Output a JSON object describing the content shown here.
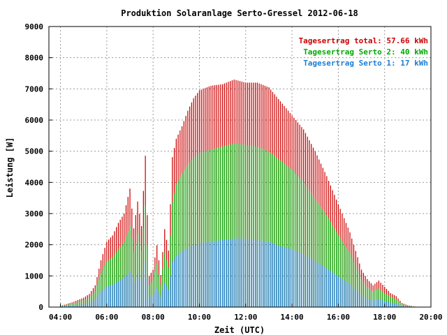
{
  "chart_data": {
    "type": "bar",
    "title": "Produktion Solaranlage Serto-Gressel 2012-06-18",
    "xlabel": "Zeit (UTC)",
    "ylabel": "Leistung [W]",
    "ylim": [
      0,
      9000
    ],
    "yticks": [
      "0",
      "1000",
      "2000",
      "3000",
      "4000",
      "5000",
      "6000",
      "7000",
      "8000",
      "9000"
    ],
    "xlim": [
      3.5,
      20.0
    ],
    "xtick_values": [
      4,
      6,
      8,
      10,
      12,
      14,
      16,
      18,
      20
    ],
    "xticks": [
      "04:00",
      "06:00",
      "08:00",
      "10:00",
      "12:00",
      "14:00",
      "16:00",
      "18:00",
      "20:00"
    ],
    "grid": true,
    "legend_position": "top-right",
    "legend": [
      {
        "label": "Tagesertrag total: 57.66 kWh",
        "color": "#cc0000"
      },
      {
        "label": "Tagesertrag Serto 2: 40 kWh",
        "color": "#00aa00"
      },
      {
        "label": "Tagesertrag Serto 1: 17 kWh",
        "color": "#1a7fd4"
      }
    ],
    "interval_minutes": 5,
    "series": [
      {
        "name": "Tagesertrag total",
        "color": "#cc0000",
        "times": [
          4.0,
          4.5,
          5.0,
          5.25,
          5.5,
          5.75,
          6.0,
          6.25,
          6.5,
          6.75,
          7.0,
          7.17,
          7.33,
          7.5,
          7.67,
          7.83,
          8.0,
          8.17,
          8.33,
          8.5,
          8.67,
          8.83,
          9.0,
          9.25,
          9.5,
          9.75,
          10.0,
          10.5,
          11.0,
          11.5,
          12.0,
          12.5,
          13.0,
          13.5,
          14.0,
          14.5,
          15.0,
          15.5,
          16.0,
          16.5,
          16.75,
          17.0,
          17.25,
          17.5,
          17.75,
          18.0,
          18.25,
          18.5,
          18.75,
          19.0,
          19.25,
          19.5
        ],
        "values": [
          40,
          150,
          300,
          420,
          700,
          1500,
          2100,
          2300,
          2700,
          3000,
          3800,
          2500,
          3400,
          2600,
          4900,
          1000,
          1200,
          2000,
          1000,
          2500,
          1800,
          4800,
          5400,
          5800,
          6300,
          6700,
          6950,
          7100,
          7150,
          7300,
          7200,
          7200,
          7050,
          6600,
          6150,
          5700,
          5000,
          4200,
          3300,
          2400,
          1800,
          1200,
          900,
          700,
          850,
          650,
          450,
          350,
          130,
          60,
          20,
          5
        ]
      },
      {
        "name": "Tagesertrag Serto 2",
        "color": "#00aa00",
        "times": [
          4.0,
          4.5,
          5.0,
          5.25,
          5.5,
          5.75,
          6.0,
          6.25,
          6.5,
          6.75,
          7.0,
          7.17,
          7.33,
          7.5,
          7.67,
          7.83,
          8.0,
          8.17,
          8.33,
          8.5,
          8.67,
          8.83,
          9.0,
          9.25,
          9.5,
          9.75,
          10.0,
          10.5,
          11.0,
          11.5,
          12.0,
          12.5,
          13.0,
          13.5,
          14.0,
          14.5,
          15.0,
          15.5,
          16.0,
          16.5,
          16.75,
          17.0,
          17.25,
          17.5,
          17.75,
          18.0,
          18.25,
          18.5,
          18.75,
          19.0,
          19.25,
          19.5
        ],
        "values": [
          30,
          110,
          220,
          300,
          500,
          1050,
          1450,
          1600,
          1850,
          2100,
          2600,
          1750,
          2350,
          1800,
          3300,
          700,
          850,
          1400,
          700,
          1750,
          1250,
          3350,
          3950,
          4300,
          4600,
          4800,
          4950,
          5050,
          5150,
          5250,
          5200,
          5150,
          5000,
          4700,
          4400,
          4000,
          3500,
          2950,
          2300,
          1700,
          1300,
          900,
          650,
          500,
          600,
          450,
          330,
          250,
          90,
          40,
          15,
          4
        ]
      },
      {
        "name": "Tagesertrag Serto 1",
        "color": "#1a7fd4",
        "times": [
          4.0,
          4.5,
          5.0,
          5.25,
          5.5,
          5.75,
          6.0,
          6.25,
          6.5,
          6.75,
          7.0,
          7.17,
          7.33,
          7.5,
          7.67,
          7.83,
          8.0,
          8.17,
          8.33,
          8.5,
          8.67,
          8.83,
          9.0,
          9.25,
          9.5,
          9.75,
          10.0,
          10.5,
          11.0,
          11.5,
          12.0,
          12.5,
          13.0,
          13.5,
          14.0,
          14.5,
          15.0,
          15.5,
          16.0,
          16.5,
          16.75,
          17.0,
          17.25,
          17.5,
          17.75,
          18.0,
          18.25,
          18.5,
          18.75,
          19.0,
          19.25,
          19.5
        ],
        "values": [
          15,
          50,
          100,
          140,
          230,
          480,
          650,
          720,
          830,
          950,
          1150,
          800,
          1050,
          800,
          1500,
          320,
          380,
          620,
          320,
          780,
          560,
          1450,
          1650,
          1800,
          1900,
          2000,
          2050,
          2100,
          2150,
          2200,
          2200,
          2150,
          2100,
          1950,
          1850,
          1700,
          1500,
          1250,
          980,
          720,
          550,
          380,
          280,
          210,
          250,
          190,
          140,
          100,
          40,
          20,
          6,
          2
        ]
      }
    ]
  }
}
